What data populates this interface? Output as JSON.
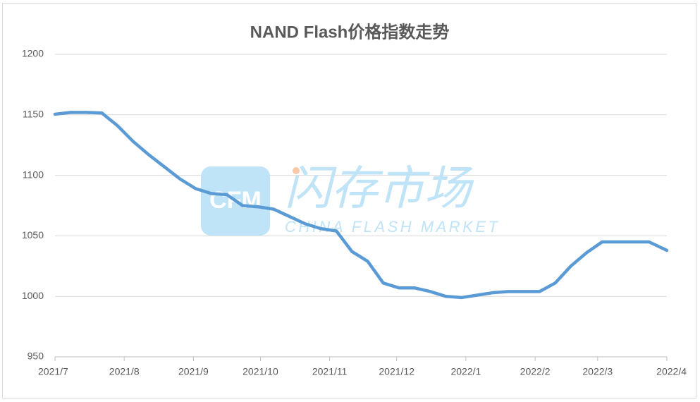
{
  "chart_data": {
    "type": "line",
    "title": "NAND Flash价格指数走势",
    "watermark": {
      "logo": "CFM",
      "name": "闪存市场",
      "subtitle": "CHINA FLASH MARKET"
    },
    "x": [
      0,
      7,
      14,
      21,
      28,
      35,
      42,
      49,
      56,
      63,
      70,
      77,
      84,
      91,
      98,
      105,
      112,
      119,
      126,
      133,
      140,
      147,
      154,
      161,
      168,
      175,
      182,
      189,
      196,
      203,
      210,
      217,
      224,
      231,
      238,
      245,
      252,
      259,
      266,
      274
    ],
    "series": [
      {
        "name": "NAND Flash价格指数",
        "color": "#5b9bd5",
        "values": [
          1150.5,
          1152,
          1152,
          1151.5,
          1141,
          1128,
          1117,
          1107,
          1097,
          1089,
          1085,
          1084,
          1075,
          1074,
          1072,
          1066,
          1060,
          1056,
          1054,
          1037,
          1029,
          1011,
          1007,
          1007,
          1004,
          1000,
          999,
          1001,
          1003,
          1004,
          1004,
          1004,
          1011,
          1025,
          1036,
          1045,
          1045,
          1045,
          1045,
          1038
        ]
      }
    ],
    "xlim": [
      0,
      274
    ],
    "xticks": [
      {
        "value": 0,
        "label": "2021/7"
      },
      {
        "value": 31,
        "label": "2021/8"
      },
      {
        "value": 62,
        "label": "2021/9"
      },
      {
        "value": 92,
        "label": "2021/10"
      },
      {
        "value": 123,
        "label": "2021/11"
      },
      {
        "value": 153,
        "label": "2021/12"
      },
      {
        "value": 184,
        "label": "2022/1"
      },
      {
        "value": 215,
        "label": "2022/2"
      },
      {
        "value": 243,
        "label": "2022/3"
      },
      {
        "value": 274,
        "label": "2022/4"
      }
    ],
    "ylim": [
      950,
      1200
    ],
    "yticks": [
      950,
      1000,
      1050,
      1100,
      1150,
      1200
    ],
    "grid": true
  }
}
